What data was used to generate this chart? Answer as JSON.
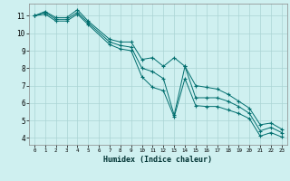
{
  "title": "",
  "xlabel": "Humidex (Indice chaleur)",
  "ylabel": "",
  "background_color": "#cff0f0",
  "grid_color": "#aad4d4",
  "line_color": "#006e6e",
  "x_data": [
    0,
    1,
    2,
    3,
    4,
    5,
    7,
    8,
    9,
    10,
    11,
    12,
    13,
    14,
    15,
    16,
    17,
    18,
    19,
    20,
    21,
    22,
    23
  ],
  "y_data_main": [
    11.0,
    11.2,
    10.8,
    10.8,
    11.2,
    10.6,
    9.5,
    9.3,
    9.2,
    8.0,
    7.8,
    7.4,
    5.3,
    8.1,
    6.3,
    6.3,
    6.3,
    6.1,
    5.8,
    5.4,
    4.4,
    4.6,
    4.3
  ],
  "y_data_upper": [
    11.0,
    11.25,
    10.9,
    10.9,
    11.35,
    10.7,
    9.65,
    9.5,
    9.5,
    8.5,
    8.6,
    8.1,
    8.6,
    8.1,
    7.0,
    6.9,
    6.8,
    6.5,
    6.1,
    5.7,
    4.75,
    4.85,
    4.5
  ],
  "y_data_lower": [
    11.0,
    11.1,
    10.7,
    10.7,
    11.1,
    10.5,
    9.35,
    9.1,
    9.0,
    7.5,
    6.9,
    6.7,
    5.2,
    7.4,
    5.85,
    5.8,
    5.8,
    5.6,
    5.4,
    5.1,
    4.1,
    4.3,
    4.05
  ],
  "ylim": [
    3.6,
    11.7
  ],
  "xlim": [
    -0.5,
    23.5
  ],
  "yticks": [
    4,
    5,
    6,
    7,
    8,
    9,
    10,
    11
  ],
  "xticks": [
    0,
    1,
    2,
    3,
    4,
    5,
    6,
    7,
    8,
    9,
    10,
    11,
    12,
    13,
    14,
    15,
    16,
    17,
    18,
    19,
    20,
    21,
    22,
    23
  ]
}
